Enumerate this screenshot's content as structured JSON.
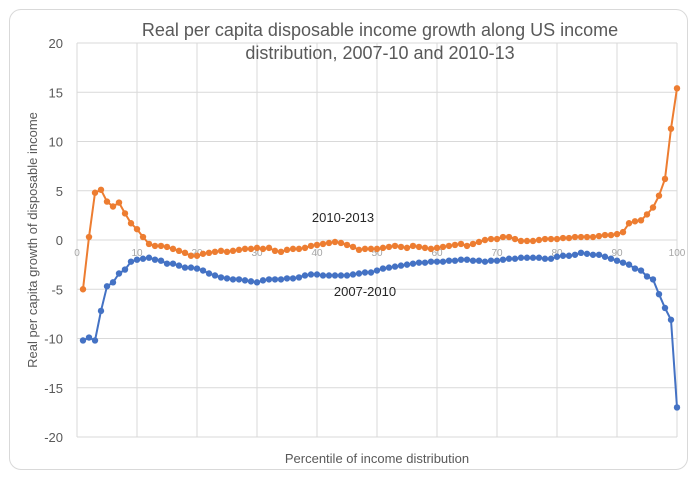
{
  "chart_data": {
    "type": "line",
    "title_lines": [
      "Real per capita disposable income growth along US income",
      "distribution, 2007-10 and 2010-13"
    ],
    "xlabel": "Percentile of income distribution",
    "ylabel": "Real per capita growth of disposable income",
    "xlim": [
      0,
      100
    ],
    "ylim": [
      -20,
      20
    ],
    "yticks": [
      20,
      15,
      10,
      5,
      0,
      -5,
      -10,
      -15,
      -20
    ],
    "xticks": [
      0,
      10,
      20,
      30,
      40,
      50,
      60,
      70,
      80,
      90,
      100
    ],
    "grid": true,
    "legend": "none",
    "annotations": [
      {
        "text": "2010-2013",
        "series": "2010-2013"
      },
      {
        "text": "2007-2010",
        "series": "2007-2010"
      }
    ],
    "series": [
      {
        "name": "2010-2013",
        "color": "#ed7d31",
        "x": [
          1,
          2,
          3,
          4,
          5,
          6,
          7,
          8,
          9,
          10,
          11,
          12,
          13,
          14,
          15,
          16,
          17,
          18,
          19,
          20,
          21,
          22,
          23,
          24,
          25,
          26,
          27,
          28,
          29,
          30,
          31,
          32,
          33,
          34,
          35,
          36,
          37,
          38,
          39,
          40,
          41,
          42,
          43,
          44,
          45,
          46,
          47,
          48,
          49,
          50,
          51,
          52,
          53,
          54,
          55,
          56,
          57,
          58,
          59,
          60,
          61,
          62,
          63,
          64,
          65,
          66,
          67,
          68,
          69,
          70,
          71,
          72,
          73,
          74,
          75,
          76,
          77,
          78,
          79,
          80,
          81,
          82,
          83,
          84,
          85,
          86,
          87,
          88,
          89,
          90,
          91,
          92,
          93,
          94,
          95,
          96,
          97,
          98,
          99,
          100
        ],
        "values": [
          -5.0,
          0.3,
          4.8,
          5.1,
          3.9,
          3.4,
          3.8,
          2.7,
          1.7,
          1.1,
          0.3,
          -0.4,
          -0.6,
          -0.6,
          -0.7,
          -0.9,
          -1.1,
          -1.3,
          -1.6,
          -1.6,
          -1.4,
          -1.3,
          -1.2,
          -1.1,
          -1.2,
          -1.1,
          -1.0,
          -0.9,
          -0.9,
          -0.8,
          -0.9,
          -0.8,
          -1.1,
          -1.2,
          -1.0,
          -0.9,
          -0.9,
          -0.8,
          -0.6,
          -0.5,
          -0.4,
          -0.3,
          -0.2,
          -0.3,
          -0.5,
          -0.7,
          -1.0,
          -0.9,
          -0.9,
          -0.9,
          -0.8,
          -0.7,
          -0.6,
          -0.7,
          -0.8,
          -0.6,
          -0.7,
          -0.8,
          -0.9,
          -0.8,
          -0.7,
          -0.6,
          -0.5,
          -0.4,
          -0.6,
          -0.4,
          -0.2,
          0.0,
          0.1,
          0.1,
          0.3,
          0.3,
          0.1,
          -0.1,
          -0.1,
          -0.1,
          0.0,
          0.1,
          0.1,
          0.1,
          0.2,
          0.2,
          0.3,
          0.3,
          0.3,
          0.3,
          0.4,
          0.5,
          0.5,
          0.6,
          0.8,
          1.7,
          1.9,
          2.0,
          2.6,
          3.3,
          4.5,
          6.2,
          11.3,
          15.4
        ]
      },
      {
        "name": "2007-2010",
        "color": "#4472c4",
        "x": [
          1,
          2,
          3,
          4,
          5,
          6,
          7,
          8,
          9,
          10,
          11,
          12,
          13,
          14,
          15,
          16,
          17,
          18,
          19,
          20,
          21,
          22,
          23,
          24,
          25,
          26,
          27,
          28,
          29,
          30,
          31,
          32,
          33,
          34,
          35,
          36,
          37,
          38,
          39,
          40,
          41,
          42,
          43,
          44,
          45,
          46,
          47,
          48,
          49,
          50,
          51,
          52,
          53,
          54,
          55,
          56,
          57,
          58,
          59,
          60,
          61,
          62,
          63,
          64,
          65,
          66,
          67,
          68,
          69,
          70,
          71,
          72,
          73,
          74,
          75,
          76,
          77,
          78,
          79,
          80,
          81,
          82,
          83,
          84,
          85,
          86,
          87,
          88,
          89,
          90,
          91,
          92,
          93,
          94,
          95,
          96,
          97,
          98,
          99,
          100
        ],
        "values": [
          -10.2,
          -9.9,
          -10.2,
          -7.2,
          -4.7,
          -4.3,
          -3.4,
          -3.0,
          -2.2,
          -2.0,
          -1.9,
          -1.8,
          -2.0,
          -2.1,
          -2.4,
          -2.4,
          -2.6,
          -2.8,
          -2.8,
          -2.9,
          -3.1,
          -3.4,
          -3.6,
          -3.8,
          -3.9,
          -4.0,
          -4.0,
          -4.1,
          -4.2,
          -4.3,
          -4.1,
          -4.0,
          -4.0,
          -4.0,
          -3.9,
          -3.9,
          -3.8,
          -3.6,
          -3.5,
          -3.5,
          -3.6,
          -3.6,
          -3.6,
          -3.6,
          -3.6,
          -3.5,
          -3.4,
          -3.3,
          -3.3,
          -3.1,
          -2.9,
          -2.8,
          -2.7,
          -2.6,
          -2.5,
          -2.4,
          -2.3,
          -2.3,
          -2.2,
          -2.2,
          -2.2,
          -2.1,
          -2.1,
          -2.0,
          -2.0,
          -2.1,
          -2.1,
          -2.2,
          -2.1,
          -2.1,
          -2.0,
          -1.9,
          -1.9,
          -1.8,
          -1.8,
          -1.8,
          -1.8,
          -1.9,
          -1.9,
          -1.7,
          -1.6,
          -1.6,
          -1.5,
          -1.3,
          -1.4,
          -1.5,
          -1.5,
          -1.7,
          -1.9,
          -2.1,
          -2.3,
          -2.5,
          -2.9,
          -3.1,
          -3.7,
          -4.0,
          -5.5,
          -6.9,
          -8.1,
          -17.0
        ]
      }
    ]
  }
}
